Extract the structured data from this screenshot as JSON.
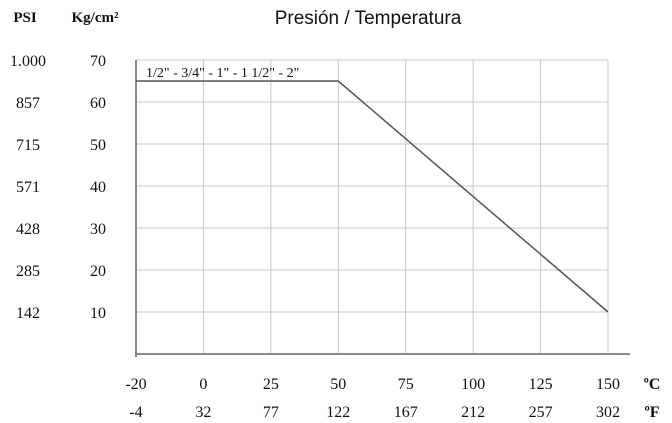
{
  "chart_data": {
    "type": "line",
    "title": "Presión / Temperatura",
    "y_axes": [
      {
        "header": "PSI",
        "tick_labels": [
          "1.000",
          "857",
          "715",
          "571",
          "428",
          "285",
          "142"
        ]
      },
      {
        "header": "Kg/cm²",
        "tick_labels": [
          "70",
          "60",
          "50",
          "40",
          "30",
          "20",
          "10"
        ],
        "values": [
          70,
          60,
          50,
          40,
          30,
          20,
          10
        ]
      }
    ],
    "x_axes": [
      {
        "unit": "ºC",
        "tick_labels": [
          "-20",
          "0",
          "25",
          "50",
          "75",
          "100",
          "125",
          "150"
        ],
        "values": [
          -20,
          0,
          25,
          50,
          75,
          100,
          125,
          150
        ]
      },
      {
        "unit": "ºF",
        "tick_labels": [
          "-4",
          "32",
          "77",
          "122",
          "167",
          "212",
          "257",
          "302"
        ]
      }
    ],
    "ylim": [
      0,
      70
    ],
    "grid": true,
    "series": [
      {
        "name": "1/2\" - 3/4\" - 1\" - 1 1/2\" - 2\"",
        "x": [
          -20,
          50,
          150
        ],
        "y": [
          65,
          65,
          10
        ]
      }
    ],
    "line_color": "#555555"
  }
}
